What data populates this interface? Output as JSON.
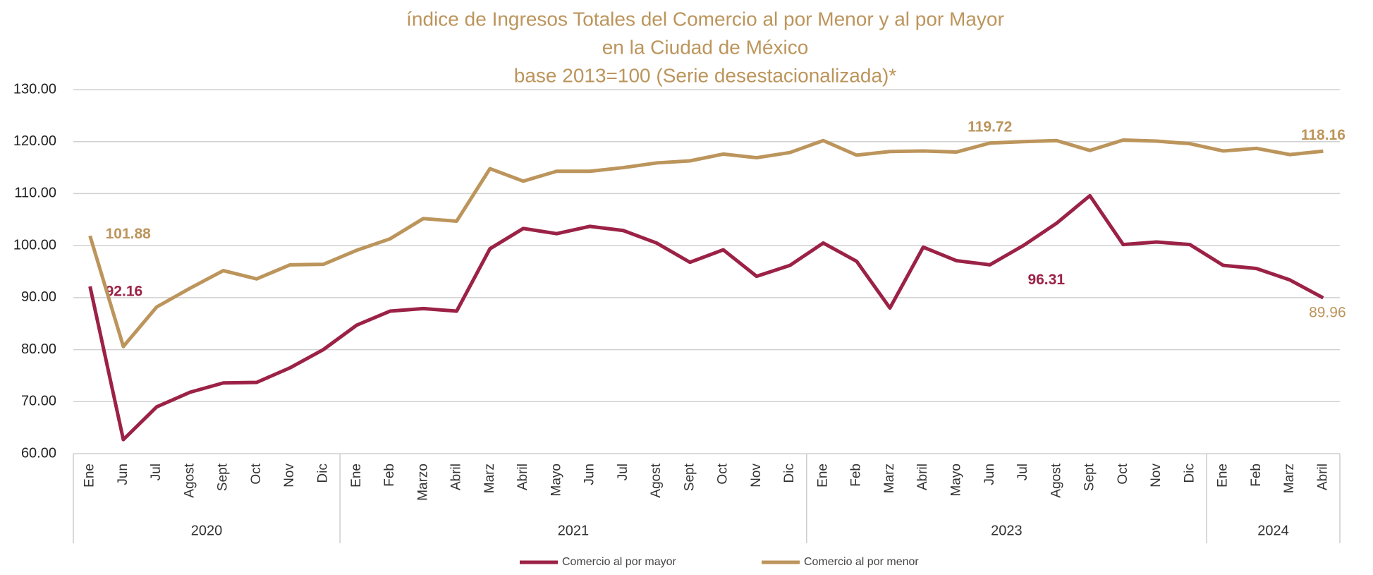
{
  "chart_data": {
    "type": "line",
    "title": [
      "índice de Ingresos Totales del Comercio al por Menor y al por Mayor",
      "en la Ciudad de México",
      "base 2013=100 (Serie desestacionalizada)*"
    ],
    "categories": [
      "Ene",
      "Jun",
      "Jul",
      "Agost",
      "Sept",
      "Oct",
      "Nov",
      "Dic",
      "Ene",
      "Feb",
      "Marzo",
      "Abril",
      "Marz",
      "Abril",
      "Mayo",
      "Jun",
      "Jul",
      "Agost",
      "Sept",
      "Oct",
      "Nov",
      "Dic",
      "Ene",
      "Feb",
      "Marz",
      "Abril",
      "Mayo",
      "Jun",
      "Jul",
      "Agost",
      "Sept",
      "Oct",
      "Nov",
      "Dic",
      "Ene",
      "Feb",
      "Marz",
      "Abril"
    ],
    "groups": [
      {
        "label": "2020",
        "count": 8
      },
      {
        "label": "2021",
        "count": 14
      },
      {
        "label": "2023",
        "count": 12
      },
      {
        "label": "2024",
        "count": 4
      }
    ],
    "series": [
      {
        "name": "Comercio al por mayor",
        "color": "#9b2246",
        "values": [
          92.16,
          62.7,
          69.0,
          71.8,
          73.6,
          73.7,
          76.5,
          80.0,
          84.7,
          87.4,
          87.9,
          87.4,
          99.4,
          103.3,
          102.3,
          103.7,
          102.9,
          100.5,
          96.8,
          99.2,
          94.1,
          96.2,
          100.5,
          97.0,
          88.0,
          99.7,
          97.1,
          96.31,
          100.0,
          104.3,
          109.6,
          100.2,
          100.7,
          100.2,
          96.2,
          95.6,
          93.4,
          89.96
        ],
        "value_labels": [
          "92.16",
          null,
          null,
          null,
          null,
          null,
          null,
          null,
          null,
          null,
          null,
          null,
          null,
          null,
          null,
          null,
          null,
          null,
          null,
          null,
          null,
          null,
          null,
          null,
          null,
          null,
          null,
          "96.31",
          null,
          null,
          null,
          null,
          null,
          null,
          null,
          null,
          null,
          "89.96"
        ]
      },
      {
        "name": "Comercio al por menor",
        "color": "#bc955c",
        "values": [
          101.88,
          80.6,
          88.2,
          91.8,
          95.2,
          93.6,
          96.3,
          96.4,
          99.1,
          101.3,
          105.2,
          104.7,
          114.8,
          112.4,
          114.3,
          114.3,
          115.0,
          115.9,
          116.3,
          117.6,
          116.9,
          117.9,
          120.2,
          117.4,
          118.1,
          118.2,
          118.0,
          119.72,
          120.0,
          120.2,
          118.3,
          120.3,
          120.1,
          119.6,
          118.2,
          118.7,
          117.5,
          118.16
        ],
        "value_labels": [
          "101.88",
          null,
          null,
          null,
          null,
          null,
          null,
          null,
          null,
          null,
          null,
          null,
          null,
          null,
          null,
          null,
          null,
          null,
          null,
          null,
          null,
          null,
          null,
          null,
          null,
          null,
          null,
          "119.72",
          null,
          null,
          null,
          null,
          null,
          null,
          null,
          null,
          null,
          "118.16"
        ]
      }
    ],
    "ylim": [
      60,
      130
    ],
    "yticks": [
      {
        "value": 60,
        "label": "60.00"
      },
      {
        "value": 70,
        "label": "70.00"
      },
      {
        "value": 80,
        "label": "80.00"
      },
      {
        "value": 90,
        "label": "90.00"
      },
      {
        "value": 100,
        "label": "100.00"
      },
      {
        "value": 110,
        "label": "110.00"
      },
      {
        "value": 120,
        "label": "120.00"
      },
      {
        "value": 130,
        "label": "130.00"
      }
    ],
    "grid": true,
    "legend": "bottom"
  }
}
